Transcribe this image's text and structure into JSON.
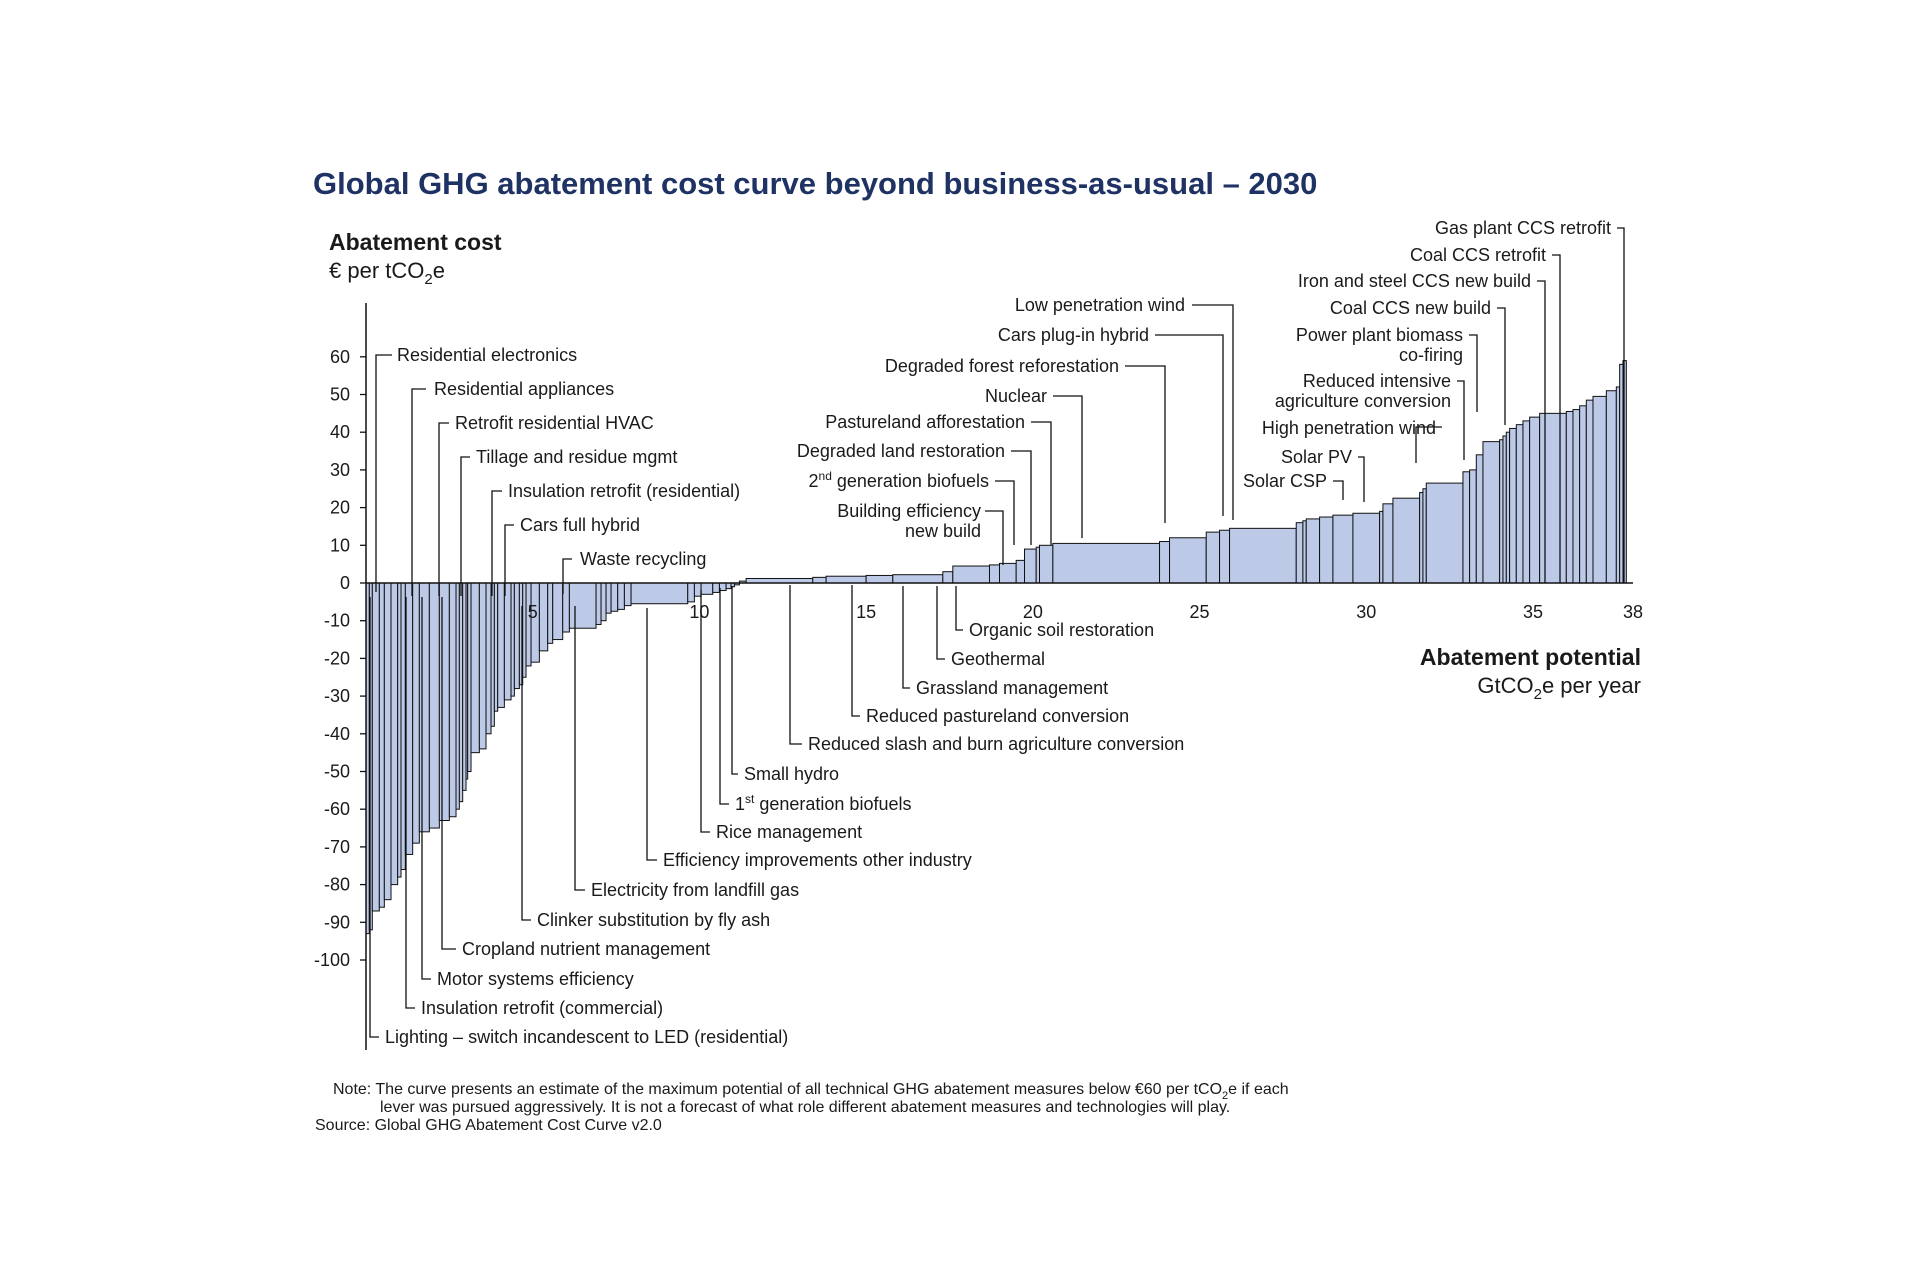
{
  "chart_data": {
    "type": "bar",
    "subtype": "marginal-abatement-cost-curve",
    "title": "Global GHG abatement cost curve beyond business-as-usual – 2030",
    "y_axis": {
      "title": "Abatement cost",
      "unit_pre": "€ per tCO",
      "unit_sub": "2",
      "unit_post": "e",
      "range": [
        -100,
        60
      ],
      "ticks": [
        60,
        50,
        40,
        30,
        20,
        10,
        0,
        -10,
        -20,
        -30,
        -40,
        -50,
        -60,
        -70,
        -80,
        -90,
        -100
      ]
    },
    "x_axis": {
      "title": "Abatement potential",
      "unit_pre": "GtCO",
      "unit_sub": "2",
      "unit_post": "e per year",
      "range": [
        0,
        38
      ],
      "ticks": [
        5,
        10,
        15,
        20,
        25,
        30,
        35,
        38
      ]
    },
    "bars": [
      {
        "start": 0.0,
        "end": 0.1,
        "cost": -93
      },
      {
        "start": 0.1,
        "end": 0.19,
        "cost": -92
      },
      {
        "start": 0.19,
        "end": 0.4,
        "cost": -87
      },
      {
        "start": 0.4,
        "end": 0.55,
        "cost": -86
      },
      {
        "start": 0.55,
        "end": 0.75,
        "cost": -84
      },
      {
        "start": 0.75,
        "end": 0.95,
        "cost": -80
      },
      {
        "start": 0.95,
        "end": 1.05,
        "cost": -78
      },
      {
        "start": 1.05,
        "end": 1.18,
        "cost": -76
      },
      {
        "start": 1.18,
        "end": 1.4,
        "cost": -72
      },
      {
        "start": 1.4,
        "end": 1.6,
        "cost": -69
      },
      {
        "start": 1.6,
        "end": 1.9,
        "cost": -66
      },
      {
        "start": 1.9,
        "end": 2.2,
        "cost": -65
      },
      {
        "start": 2.2,
        "end": 2.5,
        "cost": -63
      },
      {
        "start": 2.5,
        "end": 2.7,
        "cost": -62
      },
      {
        "start": 2.7,
        "end": 2.8,
        "cost": -60
      },
      {
        "start": 2.8,
        "end": 2.9,
        "cost": -58
      },
      {
        "start": 2.9,
        "end": 3.0,
        "cost": -55
      },
      {
        "start": 3.0,
        "end": 3.05,
        "cost": -52
      },
      {
        "start": 3.05,
        "end": 3.15,
        "cost": -50
      },
      {
        "start": 3.15,
        "end": 3.4,
        "cost": -45
      },
      {
        "start": 3.4,
        "end": 3.6,
        "cost": -44
      },
      {
        "start": 3.6,
        "end": 3.75,
        "cost": -40
      },
      {
        "start": 3.75,
        "end": 3.85,
        "cost": -38
      },
      {
        "start": 3.85,
        "end": 3.95,
        "cost": -34
      },
      {
        "start": 3.95,
        "end": 4.15,
        "cost": -33
      },
      {
        "start": 4.15,
        "end": 4.35,
        "cost": -31
      },
      {
        "start": 4.35,
        "end": 4.45,
        "cost": -30
      },
      {
        "start": 4.45,
        "end": 4.6,
        "cost": -28
      },
      {
        "start": 4.6,
        "end": 4.7,
        "cost": -27
      },
      {
        "start": 4.7,
        "end": 4.8,
        "cost": -25
      },
      {
        "start": 4.8,
        "end": 4.95,
        "cost": -22
      },
      {
        "start": 4.95,
        "end": 5.2,
        "cost": -21
      },
      {
        "start": 5.2,
        "end": 5.45,
        "cost": -18
      },
      {
        "start": 5.45,
        "end": 5.6,
        "cost": -16
      },
      {
        "start": 5.6,
        "end": 5.9,
        "cost": -15
      },
      {
        "start": 5.9,
        "end": 6.1,
        "cost": -13
      },
      {
        "start": 6.1,
        "end": 6.9,
        "cost": -12
      },
      {
        "start": 6.9,
        "end": 7.05,
        "cost": -11
      },
      {
        "start": 7.05,
        "end": 7.2,
        "cost": -10
      },
      {
        "start": 7.2,
        "end": 7.35,
        "cost": -8
      },
      {
        "start": 7.35,
        "end": 7.55,
        "cost": -7.5
      },
      {
        "start": 7.55,
        "end": 7.75,
        "cost": -7
      },
      {
        "start": 7.75,
        "end": 7.95,
        "cost": -6
      },
      {
        "start": 7.95,
        "end": 9.65,
        "cost": -5.5
      },
      {
        "start": 9.65,
        "end": 9.85,
        "cost": -5
      },
      {
        "start": 9.85,
        "end": 10.05,
        "cost": -3.5
      },
      {
        "start": 10.05,
        "end": 10.4,
        "cost": -3
      },
      {
        "start": 10.4,
        "end": 10.6,
        "cost": -2.5
      },
      {
        "start": 10.6,
        "end": 10.8,
        "cost": -2
      },
      {
        "start": 10.8,
        "end": 10.95,
        "cost": -1.5
      },
      {
        "start": 10.95,
        "end": 11.05,
        "cost": -1
      },
      {
        "start": 11.05,
        "end": 11.2,
        "cost": -0.5
      },
      {
        "start": 11.2,
        "end": 11.4,
        "cost": 0.5
      },
      {
        "start": 11.4,
        "end": 13.4,
        "cost": 1.2
      },
      {
        "start": 13.4,
        "end": 13.8,
        "cost": 1.5
      },
      {
        "start": 13.8,
        "end": 15.0,
        "cost": 1.8
      },
      {
        "start": 15.0,
        "end": 15.8,
        "cost": 2
      },
      {
        "start": 15.8,
        "end": 17.3,
        "cost": 2.2
      },
      {
        "start": 17.3,
        "end": 17.6,
        "cost": 3
      },
      {
        "start": 17.6,
        "end": 18.7,
        "cost": 4.5
      },
      {
        "start": 18.7,
        "end": 19.0,
        "cost": 4.8
      },
      {
        "start": 19.0,
        "end": 19.5,
        "cost": 5.2
      },
      {
        "start": 19.5,
        "end": 19.75,
        "cost": 6
      },
      {
        "start": 19.75,
        "end": 20.1,
        "cost": 9
      },
      {
        "start": 20.1,
        "end": 20.2,
        "cost": 9.5
      },
      {
        "start": 20.2,
        "end": 20.6,
        "cost": 10
      },
      {
        "start": 20.6,
        "end": 23.8,
        "cost": 10.5
      },
      {
        "start": 23.8,
        "end": 24.1,
        "cost": 11
      },
      {
        "start": 24.1,
        "end": 25.2,
        "cost": 12
      },
      {
        "start": 25.2,
        "end": 25.6,
        "cost": 13.5
      },
      {
        "start": 25.6,
        "end": 25.9,
        "cost": 14
      },
      {
        "start": 25.9,
        "end": 27.9,
        "cost": 14.5
      },
      {
        "start": 27.9,
        "end": 28.1,
        "cost": 16
      },
      {
        "start": 28.1,
        "end": 28.2,
        "cost": 16.5
      },
      {
        "start": 28.2,
        "end": 28.6,
        "cost": 17
      },
      {
        "start": 28.6,
        "end": 29.0,
        "cost": 17.5
      },
      {
        "start": 29.0,
        "end": 29.6,
        "cost": 18
      },
      {
        "start": 29.6,
        "end": 30.4,
        "cost": 18.5
      },
      {
        "start": 30.4,
        "end": 30.5,
        "cost": 19
      },
      {
        "start": 30.5,
        "end": 30.8,
        "cost": 21
      },
      {
        "start": 30.8,
        "end": 31.6,
        "cost": 22.5
      },
      {
        "start": 31.6,
        "end": 31.7,
        "cost": 24
      },
      {
        "start": 31.7,
        "end": 31.8,
        "cost": 25
      },
      {
        "start": 31.8,
        "end": 32.9,
        "cost": 26.5
      },
      {
        "start": 32.9,
        "end": 33.1,
        "cost": 29.5
      },
      {
        "start": 33.1,
        "end": 33.3,
        "cost": 30
      },
      {
        "start": 33.3,
        "end": 33.5,
        "cost": 34
      },
      {
        "start": 33.5,
        "end": 34.0,
        "cost": 37.5
      },
      {
        "start": 34.0,
        "end": 34.1,
        "cost": 38
      },
      {
        "start": 34.1,
        "end": 34.2,
        "cost": 39
      },
      {
        "start": 34.2,
        "end": 34.3,
        "cost": 40
      },
      {
        "start": 34.3,
        "end": 34.5,
        "cost": 41
      },
      {
        "start": 34.5,
        "end": 34.7,
        "cost": 42
      },
      {
        "start": 34.7,
        "end": 34.9,
        "cost": 43
      },
      {
        "start": 34.9,
        "end": 35.2,
        "cost": 44
      },
      {
        "start": 35.2,
        "end": 36.0,
        "cost": 45
      },
      {
        "start": 36.0,
        "end": 36.2,
        "cost": 45.5
      },
      {
        "start": 36.2,
        "end": 36.4,
        "cost": 46
      },
      {
        "start": 36.4,
        "end": 36.6,
        "cost": 47
      },
      {
        "start": 36.6,
        "end": 36.8,
        "cost": 48.5
      },
      {
        "start": 36.8,
        "end": 37.2,
        "cost": 49.5
      },
      {
        "start": 37.2,
        "end": 37.5,
        "cost": 51
      },
      {
        "start": 37.5,
        "end": 37.6,
        "cost": 52
      },
      {
        "start": 37.6,
        "end": 37.7,
        "cost": 58
      },
      {
        "start": 37.7,
        "end": 37.8,
        "cost": 59
      }
    ],
    "annotations": [
      {
        "id": "residential-electronics",
        "text": "Residential electronics"
      },
      {
        "id": "residential-appliances",
        "text": "Residential appliances"
      },
      {
        "id": "retrofit-residential-hvac",
        "text": "Retrofit residential HVAC"
      },
      {
        "id": "tillage-and-residue-mgmt",
        "text": "Tillage and residue mgmt"
      },
      {
        "id": "insulation-retrofit-residential",
        "text": "Insulation retrofit (residential)"
      },
      {
        "id": "cars-full-hybrid",
        "text": "Cars full hybrid"
      },
      {
        "id": "waste-recycling",
        "text": "Waste recycling"
      },
      {
        "id": "low-penetration-wind",
        "text": "Low penetration wind"
      },
      {
        "id": "cars-plug-in-hybrid",
        "text": "Cars plug-in hybrid"
      },
      {
        "id": "degraded-forest-reforestation",
        "text": "Degraded forest reforestation"
      },
      {
        "id": "nuclear",
        "text": "Nuclear"
      },
      {
        "id": "pastureland-afforestation",
        "text": "Pastureland afforestation"
      },
      {
        "id": "degraded-land-restoration",
        "text": "Degraded land restoration"
      },
      {
        "id": "second-gen-biofuels",
        "text_pre": "2",
        "text_sup": "nd",
        "text_post": " generation biofuels"
      },
      {
        "id": "building-efficiency",
        "text_line1": "Building efficiency",
        "text_line2": "new build"
      },
      {
        "id": "gas-plant-ccs-retrofit",
        "text": "Gas plant CCS retrofit"
      },
      {
        "id": "coal-ccs-retrofit",
        "text": "Coal CCS retrofit"
      },
      {
        "id": "iron-steel-ccs-new-build",
        "text": "Iron and steel CCS new build"
      },
      {
        "id": "coal-ccs-new-build",
        "text": "Coal CCS new build"
      },
      {
        "id": "power-plant-biomass",
        "text_line1": "Power plant biomass",
        "text_line2": "co-firing"
      },
      {
        "id": "reduced-intensive-agriculture",
        "text_line1": "Reduced intensive",
        "text_line2": "agriculture conversion"
      },
      {
        "id": "high-penetration-wind",
        "text": "High penetration wind"
      },
      {
        "id": "solar-pv",
        "text": "Solar PV"
      },
      {
        "id": "solar-csp",
        "text": "Solar CSP"
      },
      {
        "id": "organic-soil-restoration",
        "text": "Organic soil restoration"
      },
      {
        "id": "geothermal",
        "text": "Geothermal"
      },
      {
        "id": "grassland-management",
        "text": "Grassland management"
      },
      {
        "id": "reduced-pastureland-conversion",
        "text": "Reduced pastureland conversion"
      },
      {
        "id": "reduced-slash-burn",
        "text": "Reduced slash and burn agriculture conversion"
      },
      {
        "id": "small-hydro",
        "text": "Small hydro"
      },
      {
        "id": "first-gen-biofuels",
        "text_pre": "1",
        "text_sup": "st",
        "text_post": " generation biofuels"
      },
      {
        "id": "rice-management",
        "text": "Rice management"
      },
      {
        "id": "efficiency-improvements-other-industry",
        "text": "Efficiency improvements other industry"
      },
      {
        "id": "electricity-from-landfill-gas",
        "text": "Electricity from landfill gas"
      },
      {
        "id": "clinker-substitution",
        "text": "Clinker substitution by fly ash"
      },
      {
        "id": "cropland-nutrient-management",
        "text": "Cropland nutrient management"
      },
      {
        "id": "motor-systems-efficiency",
        "text": "Motor systems efficiency"
      },
      {
        "id": "insulation-retrofit-commercial",
        "text": "Insulation retrofit (commercial)"
      },
      {
        "id": "lighting-led",
        "text": "Lighting – switch incandescent to LED (residential)"
      }
    ],
    "note": {
      "line1_pre": "Note: The curve presents an estimate of the maximum potential of all technical GHG abatement measures below €60 per tCO",
      "line1_sub": "2",
      "line1_post": "e if each",
      "line2": "lever was pursued aggressively. It is not a forecast of what role different abatement measures and technologies will play.",
      "source": "Source: Global GHG Abatement Cost Curve v2.0"
    }
  }
}
